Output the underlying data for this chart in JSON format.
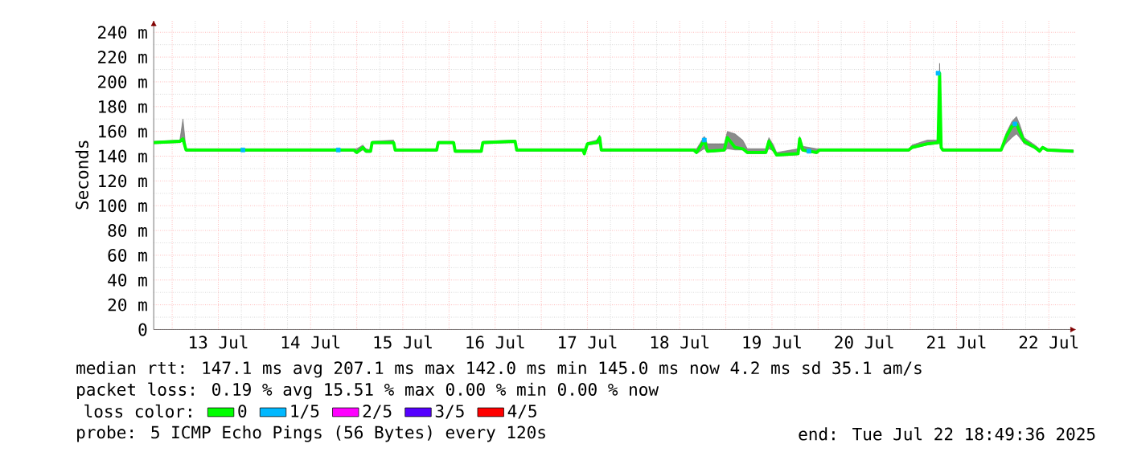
{
  "chart_data": {
    "type": "line",
    "ylabel": "Seconds",
    "legend_title": "loss color:",
    "legend": "bottom",
    "grid": true,
    "line_style": "solid",
    "annotations": [
      "median rtt:  147.1 ms avg  207.1 ms max  142.0 ms min  145.0 ms now  4.2 ms sd  35.1   am/s",
      "packet loss: 0.19 % avg  15.51 % max  0.00 % min  0.00 % now",
      "probe:       5 ICMP Echo Pings (56 Bytes) every 120s",
      "end: Tue Jul 22 18:49:36 2025"
    ],
    "x": [
      "2025-07-12T19:12",
      "2025-07-13T02:00",
      "2025-07-13T02:48",
      "2025-07-13T03:36",
      "2025-07-14T23:12",
      "2025-07-15T00:00",
      "2025-07-15T01:36",
      "2025-07-15T02:24",
      "2025-07-15T03:36",
      "2025-07-15T04:00",
      "2025-07-15T09:36",
      "2025-07-15T10:00",
      "2025-07-15T20:48",
      "2025-07-15T21:12",
      "2025-07-16T01:12",
      "2025-07-16T01:36",
      "2025-07-16T08:24",
      "2025-07-16T08:48",
      "2025-07-16T17:12",
      "2025-07-16T17:36",
      "2025-07-17T10:48",
      "2025-07-17T11:12",
      "2025-07-17T12:00",
      "2025-07-17T14:24",
      "2025-07-17T15:12",
      "2025-07-17T15:36",
      "2025-07-18T15:36",
      "2025-07-18T16:24",
      "2025-07-18T18:24",
      "2025-07-18T19:12",
      "2025-07-18T23:36",
      "2025-07-19T00:24",
      "2025-07-19T02:24",
      "2025-07-19T04:24",
      "2025-07-19T05:36",
      "2025-07-19T10:24",
      "2025-07-19T11:12",
      "2025-07-19T12:24",
      "2025-07-19T13:12",
      "2025-07-19T18:48",
      "2025-07-19T19:12",
      "2025-07-19T20:00",
      "2025-07-19T23:36",
      "2025-07-20T00:24",
      "2025-07-20T23:36",
      "2025-07-21T00:24",
      "2025-07-21T04:24",
      "2025-07-21T07:12",
      "2025-07-21T07:36",
      "2025-07-21T08:00",
      "2025-07-21T08:24",
      "2025-07-21T23:36",
      "2025-07-22T00:48",
      "2025-07-22T02:24",
      "2025-07-22T03:36",
      "2025-07-22T04:24",
      "2025-07-22T05:36",
      "2025-07-22T08:24",
      "2025-07-22T09:36",
      "2025-07-22T10:24",
      "2025-07-22T11:36",
      "2025-07-22T18:24"
    ],
    "xlim": [
      "2025-07-12T19:12",
      "2025-07-22T19:12"
    ],
    "xticks": [
      {
        "value": "2025-07-13",
        "label": null
      },
      {
        "value": "2025-07-13T12:00",
        "label": "13 Jul"
      },
      {
        "value": "2025-07-14",
        "label": null
      },
      {
        "value": "2025-07-14T12:00",
        "label": "14 Jul"
      },
      {
        "value": "2025-07-15",
        "label": null
      },
      {
        "value": "2025-07-15T12:00",
        "label": "15 Jul"
      },
      {
        "value": "2025-07-16",
        "label": null
      },
      {
        "value": "2025-07-16T12:00",
        "label": "16 Jul"
      },
      {
        "value": "2025-07-17",
        "label": null
      },
      {
        "value": "2025-07-17T12:00",
        "label": "17 Jul"
      },
      {
        "value": "2025-07-18",
        "label": null
      },
      {
        "value": "2025-07-18T12:00",
        "label": "18 Jul"
      },
      {
        "value": "2025-07-19",
        "label": null
      },
      {
        "value": "2025-07-19T12:00",
        "label": "19 Jul"
      },
      {
        "value": "2025-07-20",
        "label": null
      },
      {
        "value": "2025-07-20T12:00",
        "label": "20 Jul"
      },
      {
        "value": "2025-07-21",
        "label": null
      },
      {
        "value": "2025-07-21T12:00",
        "label": "21 Jul"
      },
      {
        "value": "2025-07-22",
        "label": null
      },
      {
        "value": "2025-07-22T12:00",
        "label": "22 Jul"
      }
    ],
    "ylim": [
      0,
      250
    ],
    "yticks": [
      0,
      {
        "value": 20,
        "label": "20 m"
      },
      {
        "value": 40,
        "label": "40 m"
      },
      {
        "value": 60,
        "label": "60 m"
      },
      {
        "value": 80,
        "label": "80 m"
      },
      {
        "value": 100,
        "label": "100 m"
      },
      {
        "value": 120,
        "label": "120 m"
      },
      {
        "value": 140,
        "label": "140 m"
      },
      {
        "value": 160,
        "label": "160 m"
      },
      {
        "value": 180,
        "label": "180 m"
      },
      {
        "value": 200,
        "label": "200 m"
      },
      {
        "value": 220,
        "label": "220 m"
      },
      {
        "value": 240,
        "label": "240 m"
      }
    ],
    "series": [
      {
        "name": "0",
        "color": "#00ff00",
        "values": [
          151,
          152,
          154,
          145,
          145,
          143,
          147,
          144,
          144,
          151,
          151,
          145,
          145,
          151,
          151,
          144,
          144,
          151,
          152,
          145,
          145,
          142,
          150,
          151,
          155,
          145,
          145,
          143,
          153,
          144,
          145,
          155,
          147,
          146,
          143,
          143,
          152,
          145,
          141,
          142,
          154,
          145,
          143,
          145,
          145,
          147,
          150,
          151,
          207,
          147,
          145,
          145,
          155,
          164,
          166,
          160,
          152,
          147,
          144,
          147,
          145,
          144
        ],
        "lower": [
          150,
          151,
          152,
          144,
          144,
          142,
          145,
          143,
          143,
          150,
          150,
          144,
          144,
          150,
          150,
          143,
          143,
          150,
          151,
          144,
          144,
          141,
          149,
          150,
          150,
          144,
          144,
          142,
          146,
          143,
          144,
          146,
          145,
          145,
          142,
          142,
          146,
          144,
          140,
          141,
          146,
          144,
          142,
          144,
          144,
          146,
          149,
          150,
          150,
          146,
          144,
          144,
          150,
          155,
          158,
          155,
          150,
          146,
          143,
          146,
          144,
          143
        ],
        "upper": [
          152,
          153,
          170,
          146,
          146,
          146,
          149,
          146,
          145,
          152,
          153,
          146,
          146,
          152,
          152,
          145,
          145,
          152,
          153,
          146,
          146,
          146,
          151,
          153,
          157,
          146,
          146,
          146,
          156,
          150,
          150,
          160,
          158,
          153,
          146,
          146,
          155,
          149,
          143,
          146,
          156,
          148,
          146,
          146,
          146,
          149,
          153,
          153,
          215,
          149,
          146,
          146,
          158,
          168,
          172,
          166,
          155,
          149,
          146,
          148,
          146,
          145
        ]
      },
      {
        "name": "1/5",
        "type": "scatter",
        "color": "#00b8ff",
        "x": [
          "2025-07-13T18:24",
          "2025-07-14T19:12",
          "2025-07-18T18:24",
          "2025-07-19T21:36",
          "2025-07-21T07:12",
          "2025-07-22T03:12"
        ],
        "values": [
          145,
          145,
          153,
          144,
          207,
          166
        ]
      },
      {
        "name": "2/5",
        "color": "#ff00ff",
        "values": [
          null,
          null,
          null,
          null,
          null,
          null,
          null,
          null,
          null,
          null,
          null,
          null,
          null,
          null,
          null,
          null,
          null,
          null,
          null,
          null,
          null,
          null,
          null,
          null,
          null,
          null,
          null,
          null,
          null,
          null,
          null,
          null,
          null,
          null,
          null,
          null,
          null,
          null,
          null,
          null,
          null,
          null,
          null,
          null,
          null,
          null,
          null,
          null,
          null,
          null,
          null,
          null,
          null,
          null,
          null,
          null,
          null,
          null,
          null,
          null,
          null,
          null
        ]
      },
      {
        "name": "3/5",
        "color": "#5500ff",
        "values": [
          null,
          null,
          null,
          null,
          null,
          null,
          null,
          null,
          null,
          null,
          null,
          null,
          null,
          null,
          null,
          null,
          null,
          null,
          null,
          null,
          null,
          null,
          null,
          null,
          null,
          null,
          null,
          null,
          null,
          null,
          null,
          null,
          null,
          null,
          null,
          null,
          null,
          null,
          null,
          null,
          null,
          null,
          null,
          null,
          null,
          null,
          null,
          null,
          null,
          null,
          null,
          null,
          null,
          null,
          null,
          null,
          null,
          null,
          null,
          null,
          null,
          null
        ]
      },
      {
        "name": "4/5",
        "color": "#ff0000",
        "values": [
          null,
          null,
          null,
          null,
          null,
          null,
          null,
          null,
          null,
          null,
          null,
          null,
          null,
          null,
          null,
          null,
          null,
          null,
          null,
          null,
          null,
          null,
          null,
          null,
          null,
          null,
          null,
          null,
          null,
          null,
          null,
          null,
          null,
          null,
          null,
          null,
          null,
          null,
          null,
          null,
          null,
          null,
          null,
          null,
          null,
          null,
          null,
          null,
          null,
          null,
          null,
          null,
          null,
          null,
          null,
          null,
          null,
          null,
          null,
          null,
          null,
          null
        ]
      }
    ]
  }
}
